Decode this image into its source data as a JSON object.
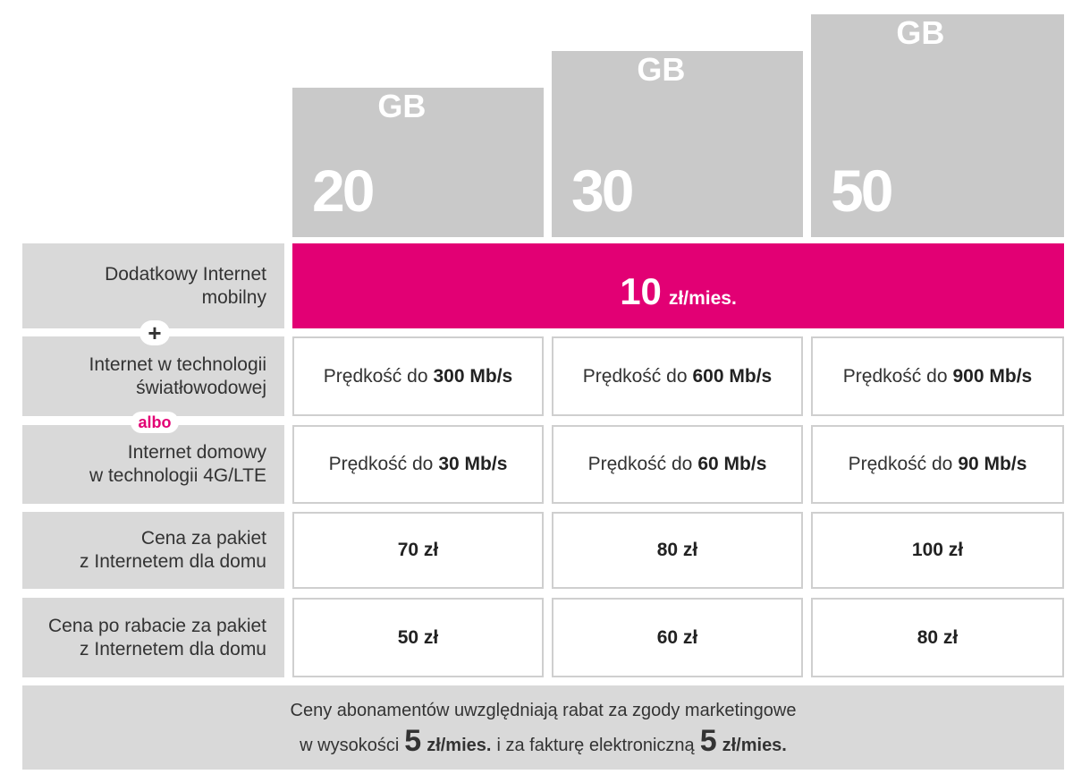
{
  "plans": [
    {
      "size": "20",
      "unit": "GB"
    },
    {
      "size": "30",
      "unit": "GB"
    },
    {
      "size": "50",
      "unit": "GB"
    }
  ],
  "mobile_internet": {
    "label": [
      "Dodatkowy Internet",
      "mobilny"
    ],
    "price": "10",
    "unit": "zł/mies."
  },
  "connectors": {
    "plus": "+",
    "or": "albo"
  },
  "fiber": {
    "label": [
      "Internet w technologii",
      "światłowodowej"
    ],
    "cells": [
      {
        "prefix": "Prędkość do",
        "value": "300 Mb/s"
      },
      {
        "prefix": "Prędkość do",
        "value": "600 Mb/s"
      },
      {
        "prefix": "Prędkość do",
        "value": "900 Mb/s"
      }
    ]
  },
  "lte": {
    "label": [
      "Internet domowy",
      "w technologii 4G/LTE"
    ],
    "cells": [
      {
        "prefix": "Prędkość do",
        "value": "30 Mb/s"
      },
      {
        "prefix": "Prędkość do",
        "value": "60 Mb/s"
      },
      {
        "prefix": "Prędkość do",
        "value": "90 Mb/s"
      }
    ]
  },
  "price": {
    "label": [
      "Cena za pakiet",
      "z Internetem dla domu"
    ],
    "cells": [
      "70 zł",
      "80 zł",
      "100 zł"
    ]
  },
  "discount_price": {
    "label": [
      "Cena po rabacie za pakiet",
      "z Internetem dla domu"
    ],
    "cells": [
      "50 zł",
      "60 zł",
      "80 zł"
    ]
  },
  "footer": {
    "line1": "Ceny abonamentów uwzględniają rabat za zgody marketingowe",
    "line2": [
      "w wysokości",
      "5",
      "zł/mies.",
      "i za fakturę elektroniczną",
      "5",
      "zł/mies."
    ]
  }
}
